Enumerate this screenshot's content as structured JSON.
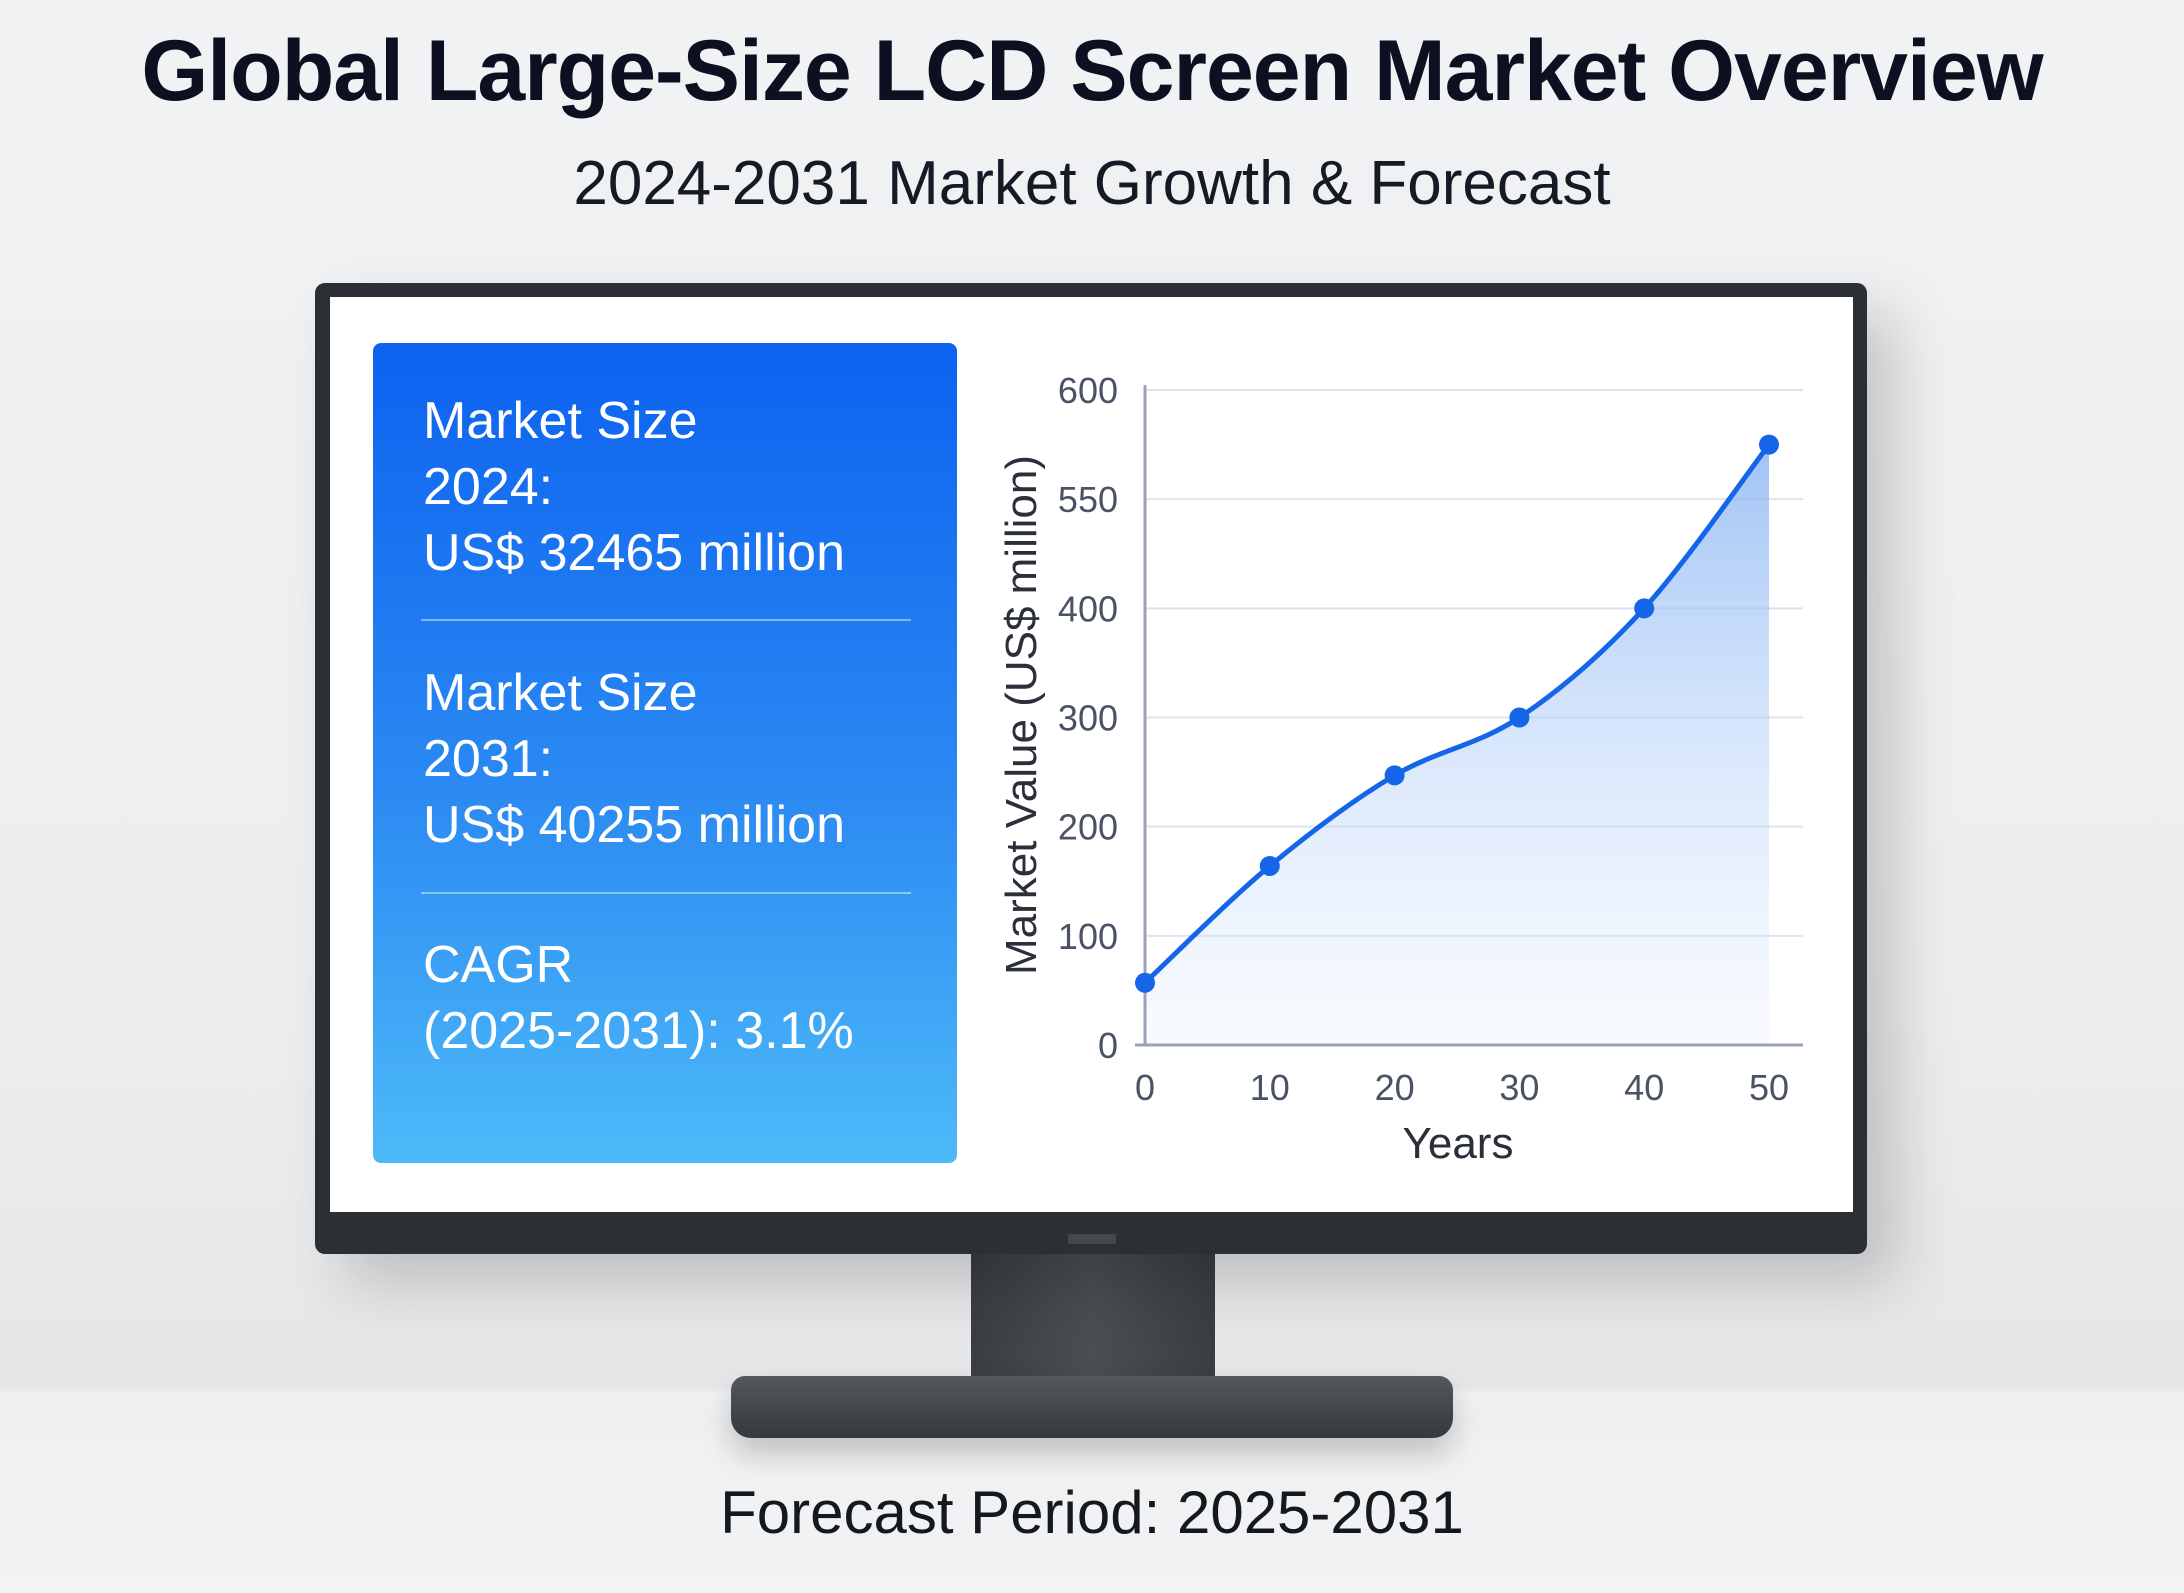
{
  "header": {
    "title": "Global Large-Size LCD Screen Market Overview",
    "subtitle": "2024-2031 Market Growth & Forecast"
  },
  "panel": {
    "market_2024_label": "Market Size",
    "market_2024_year": "2024:",
    "market_2024_value": "US$ 32465 million",
    "market_2031_label": "Market Size",
    "market_2031_year": "2031:",
    "market_2031_value": "US$ 40255 million",
    "cagr_label": "CAGR",
    "cagr_value": "(2025-2031): 3.1%"
  },
  "footer": "Forecast Period: 2025-2031",
  "colors": {
    "accent": "#1565e8",
    "panel_top": "#0d62f0",
    "panel_bottom": "#4dbaf8"
  },
  "chart_data": {
    "type": "area",
    "xlabel": "Years",
    "ylabel": "Market Value (US$ million)",
    "x": [
      0,
      10,
      20,
      30,
      40,
      50
    ],
    "values": [
      57,
      164,
      247,
      300,
      400,
      575
    ],
    "x_ticks": [
      "0",
      "10",
      "20",
      "30",
      "40",
      "50"
    ],
    "y_ticks": [
      "0",
      "100",
      "200",
      "300",
      "400",
      "550",
      "600"
    ],
    "xlim": [
      0,
      50
    ],
    "ylim": [
      0,
      600
    ],
    "grid": true,
    "legend": "none"
  }
}
